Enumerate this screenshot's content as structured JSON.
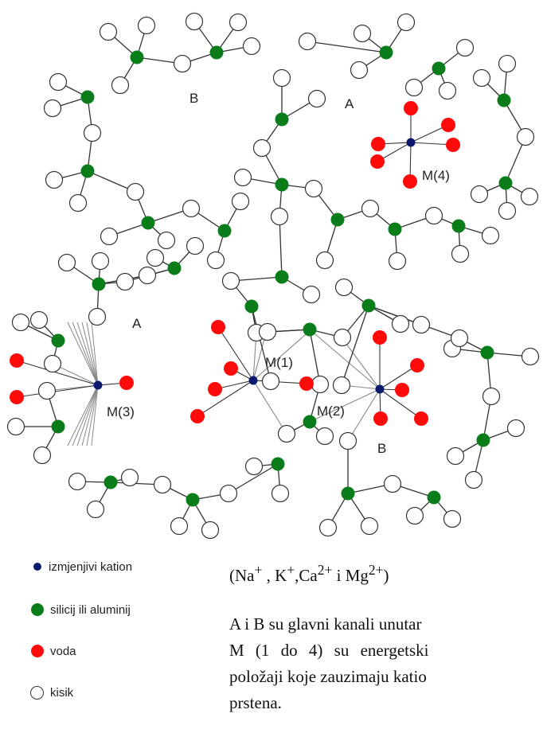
{
  "diagram": {
    "labels": {
      "B_top": "B",
      "A_top": "A",
      "M4": "M(4)",
      "A_left": "A",
      "M1": "M(1)",
      "M2": "M(2)",
      "M3": "M(3)",
      "B_bottom": "B"
    },
    "colors": {
      "cation": "#0b1a6e",
      "silicon": "#0a7d1a",
      "water": "#ff0a0a",
      "oxygen_fill": "#ffffff",
      "bond": "#333333",
      "coordination": "#888888"
    }
  },
  "legend": {
    "items": [
      {
        "icon": "cation-dot-icon",
        "label": "izmjenjivi kation"
      },
      {
        "icon": "silicon-dot-icon",
        "label": "silicij ili aluminij"
      },
      {
        "icon": "water-dot-icon",
        "label": "voda"
      },
      {
        "icon": "oxygen-circle-icon",
        "label": "kisik"
      }
    ]
  },
  "formula": {
    "na": "Na",
    "na_charge": "+",
    "k": "K",
    "k_charge": "+",
    "ca": "Ca",
    "ca_charge": "2+",
    "and": "i",
    "mg": "Mg",
    "mg_charge": "2+"
  },
  "caption": {
    "lines": [
      "A i B su glavni kanali unutar",
      "M (1 do 4) su energetski",
      "položaji koje zauzimaju katio",
      "prstena."
    ]
  }
}
